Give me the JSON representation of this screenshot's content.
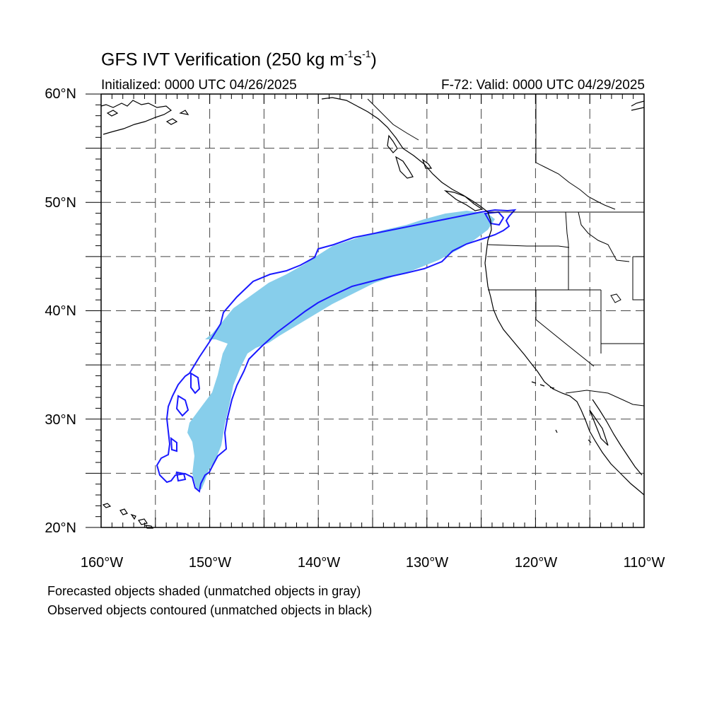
{
  "title": {
    "main": "GFS IVT Verification (250 kg m",
    "sup1": "-1",
    "mid": "s",
    "sup2": "-1",
    "end": ")"
  },
  "init_label": "Initialized: 0000 UTC 04/26/2025",
  "valid_label": "F-72: Valid: 0000 UTC 04/29/2025",
  "lat_labels": [
    "60°N",
    "50°N",
    "40°N",
    "30°N",
    "20°N"
  ],
  "lon_labels": [
    "160°W",
    "150°W",
    "140°W",
    "130°W",
    "120°W",
    "110°W"
  ],
  "map": {
    "lon_range": [
      -160,
      -110
    ],
    "lat_range": [
      20,
      60
    ],
    "grid_lons": [
      -155,
      -150,
      -145,
      -140,
      -135,
      -130,
      -125,
      -120,
      -115
    ],
    "grid_lats": [
      25,
      30,
      35,
      40,
      45,
      50,
      55
    ],
    "forecast_color": "#87ceeb",
    "observed_color": "#1a1aff",
    "coast_color": "#000000",
    "grid_style": "dashed"
  },
  "legend": {
    "forecast_text": "Forecasted objects shaded (unmatched objects in gray)",
    "observed_text": "Observed objects contoured (unmatched objects in black)"
  }
}
